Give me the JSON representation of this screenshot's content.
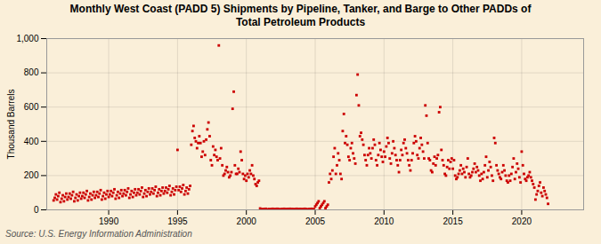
{
  "chart_data": {
    "type": "scatter",
    "title": "Monthly West Coast (PADD 5) Shipments by Pipeline, Tanker, and Barge to Other PADDs of\nTotal Petroleum Products",
    "ylabel": "Thousand Barrels",
    "annotations": [
      "Source: U.S. Energy Information Administration"
    ],
    "color": "#cc0000",
    "marker": "square",
    "grid": true,
    "xlim": [
      1985.5,
      2024.5
    ],
    "xticks": [
      1990,
      1995,
      2000,
      2005,
      2010,
      2015,
      2020
    ],
    "ylim": [
      0,
      1000
    ],
    "yticks": [
      0,
      200,
      400,
      600,
      800,
      {
        "value": 1000,
        "label": "1,000"
      }
    ],
    "x": [
      1986,
      1986.0833333333333,
      1986.1666666666667,
      1986.25,
      1986.3333333333333,
      1986.4166666666667,
      1986.5,
      1986.5833333333333,
      1986.6666666666667,
      1986.75,
      1986.8333333333333,
      1986.9166666666667,
      1987,
      1987.0833333333333,
      1987.1666666666667,
      1987.25,
      1987.3333333333333,
      1987.4166666666667,
      1987.5,
      1987.5833333333333,
      1987.6666666666667,
      1987.75,
      1987.8333333333333,
      1987.9166666666667,
      1988,
      1988.0833333333333,
      1988.1666666666667,
      1988.25,
      1988.3333333333333,
      1988.4166666666667,
      1988.5,
      1988.5833333333333,
      1988.6666666666667,
      1988.75,
      1988.8333333333333,
      1988.9166666666667,
      1989,
      1989.0833333333333,
      1989.1666666666667,
      1989.25,
      1989.3333333333333,
      1989.4166666666667,
      1989.5,
      1989.5833333333333,
      1989.6666666666667,
      1989.75,
      1989.8333333333333,
      1989.9166666666667,
      1990,
      1990.0833333333333,
      1990.1666666666667,
      1990.25,
      1990.3333333333333,
      1990.4166666666667,
      1990.5,
      1990.5833333333333,
      1990.6666666666667,
      1990.75,
      1990.8333333333333,
      1990.9166666666667,
      1991,
      1991.0833333333333,
      1991.1666666666667,
      1991.25,
      1991.3333333333333,
      1991.4166666666667,
      1991.5,
      1991.5833333333333,
      1991.6666666666667,
      1991.75,
      1991.8333333333333,
      1991.9166666666667,
      1992,
      1992.0833333333333,
      1992.1666666666667,
      1992.25,
      1992.3333333333333,
      1992.4166666666667,
      1992.5,
      1992.5833333333333,
      1992.6666666666667,
      1992.75,
      1992.8333333333333,
      1992.9166666666667,
      1993,
      1993.0833333333333,
      1993.1666666666667,
      1993.25,
      1993.3333333333333,
      1993.4166666666667,
      1993.5,
      1993.5833333333333,
      1993.6666666666667,
      1993.75,
      1993.8333333333333,
      1993.9166666666667,
      1994,
      1994.0833333333333,
      1994.1666666666667,
      1994.25,
      1994.3333333333333,
      1994.4166666666667,
      1994.5,
      1994.5833333333333,
      1994.6666666666667,
      1994.75,
      1994.8333333333333,
      1994.9166666666667,
      1995,
      1995.0833333333333,
      1995.1666666666667,
      1995.25,
      1995.3333333333333,
      1995.4166666666667,
      1995.5,
      1995.5833333333333,
      1995.6666666666667,
      1995.75,
      1995.8333333333333,
      1995.9166666666667,
      1996,
      1996.0833333333333,
      1996.1666666666667,
      1996.25,
      1996.3333333333333,
      1996.4166666666667,
      1996.5,
      1996.5833333333333,
      1996.6666666666667,
      1996.75,
      1996.8333333333333,
      1996.9166666666667,
      1997,
      1997.0833333333333,
      1997.1666666666667,
      1997.25,
      1997.3333333333333,
      1997.4166666666667,
      1997.5,
      1997.5833333333333,
      1997.6666666666667,
      1997.75,
      1997.8333333333333,
      1997.9166666666667,
      1998,
      1998.0833333333333,
      1998.1666666666667,
      1998.25,
      1998.3333333333333,
      1998.4166666666667,
      1998.5,
      1998.5833333333333,
      1998.6666666666667,
      1998.75,
      1998.8333333333333,
      1998.9166666666667,
      1999,
      1999.0833333333333,
      1999.1666666666667,
      1999.25,
      1999.3333333333333,
      1999.4166666666667,
      1999.5,
      1999.5833333333333,
      1999.6666666666667,
      1999.75,
      1999.8333333333333,
      1999.9166666666667,
      2000,
      2000.0833333333333,
      2000.1666666666667,
      2000.25,
      2000.3333333333333,
      2000.4166666666667,
      2000.5,
      2000.5833333333333,
      2000.6666666666667,
      2000.75,
      2000.8333333333333,
      2000.9166666666667,
      2001,
      2001.0833333333333,
      2001.1666666666667,
      2001.25,
      2001.3333333333333,
      2001.4166666666667,
      2001.5,
      2001.5833333333333,
      2001.6666666666667,
      2001.75,
      2001.8333333333333,
      2001.9166666666667,
      2002,
      2002.0833333333333,
      2002.1666666666667,
      2002.25,
      2002.3333333333333,
      2002.4166666666667,
      2002.5,
      2002.5833333333333,
      2002.6666666666667,
      2002.75,
      2002.8333333333333,
      2002.9166666666667,
      2003,
      2003.0833333333333,
      2003.1666666666667,
      2003.25,
      2003.3333333333333,
      2003.4166666666667,
      2003.5,
      2003.5833333333333,
      2003.6666666666667,
      2003.75,
      2003.8333333333333,
      2003.9166666666667,
      2004,
      2004.0833333333333,
      2004.1666666666667,
      2004.25,
      2004.3333333333333,
      2004.4166666666667,
      2004.5,
      2004.5833333333333,
      2004.6666666666667,
      2004.75,
      2004.8333333333333,
      2004.9166666666667,
      2005,
      2005.0833333333333,
      2005.1666666666667,
      2005.25,
      2005.3333333333333,
      2005.4166666666667,
      2005.5,
      2005.5833333333333,
      2005.6666666666667,
      2005.75,
      2005.8333333333333,
      2005.9166666666667,
      2006,
      2006.0833333333333,
      2006.1666666666667,
      2006.25,
      2006.3333333333333,
      2006.4166666666667,
      2006.5,
      2006.5833333333333,
      2006.6666666666667,
      2006.75,
      2006.8333333333333,
      2006.9166666666667,
      2007,
      2007.0833333333333,
      2007.1666666666667,
      2007.25,
      2007.3333333333333,
      2007.4166666666667,
      2007.5,
      2007.5833333333333,
      2007.6666666666667,
      2007.75,
      2007.8333333333333,
      2007.9166666666667,
      2008,
      2008.0833333333333,
      2008.1666666666667,
      2008.25,
      2008.3333333333333,
      2008.4166666666667,
      2008.5,
      2008.5833333333333,
      2008.6666666666667,
      2008.75,
      2008.8333333333333,
      2008.9166666666667,
      2009,
      2009.0833333333333,
      2009.1666666666667,
      2009.25,
      2009.3333333333333,
      2009.4166666666667,
      2009.5,
      2009.5833333333333,
      2009.6666666666667,
      2009.75,
      2009.8333333333333,
      2009.9166666666667,
      2010,
      2010.0833333333333,
      2010.1666666666667,
      2010.25,
      2010.3333333333333,
      2010.4166666666667,
      2010.5,
      2010.5833333333333,
      2010.6666666666667,
      2010.75,
      2010.8333333333333,
      2010.9166666666667,
      2011,
      2011.0833333333333,
      2011.1666666666667,
      2011.25,
      2011.3333333333333,
      2011.4166666666667,
      2011.5,
      2011.5833333333333,
      2011.6666666666667,
      2011.75,
      2011.8333333333333,
      2011.9166666666667,
      2012,
      2012.0833333333333,
      2012.1666666666667,
      2012.25,
      2012.3333333333333,
      2012.4166666666667,
      2012.5,
      2012.5833333333333,
      2012.6666666666667,
      2012.75,
      2012.8333333333333,
      2012.9166666666667,
      2013,
      2013.0833333333333,
      2013.1666666666667,
      2013.25,
      2013.3333333333333,
      2013.4166666666667,
      2013.5,
      2013.5833333333333,
      2013.6666666666667,
      2013.75,
      2013.8333333333333,
      2013.9166666666667,
      2014,
      2014.0833333333333,
      2014.1666666666667,
      2014.25,
      2014.3333333333333,
      2014.4166666666667,
      2014.5,
      2014.5833333333333,
      2014.6666666666667,
      2014.75,
      2014.8333333333333,
      2014.9166666666667,
      2015,
      2015.0833333333333,
      2015.1666666666667,
      2015.25,
      2015.3333333333333,
      2015.4166666666667,
      2015.5,
      2015.5833333333333,
      2015.6666666666667,
      2015.75,
      2015.8333333333333,
      2015.9166666666667,
      2016,
      2016.0833333333333,
      2016.1666666666667,
      2016.25,
      2016.3333333333333,
      2016.4166666666667,
      2016.5,
      2016.5833333333333,
      2016.6666666666667,
      2016.75,
      2016.8333333333333,
      2016.9166666666667,
      2017,
      2017.0833333333333,
      2017.1666666666667,
      2017.25,
      2017.3333333333333,
      2017.4166666666667,
      2017.5,
      2017.5833333333333,
      2017.6666666666667,
      2017.75,
      2017.8333333333333,
      2017.9166666666667,
      2018,
      2018.0833333333333,
      2018.1666666666667,
      2018.25,
      2018.3333333333333,
      2018.4166666666667,
      2018.5,
      2018.5833333333333,
      2018.6666666666667,
      2018.75,
      2018.8333333333333,
      2018.9166666666667,
      2019,
      2019.0833333333333,
      2019.1666666666667,
      2019.25,
      2019.3333333333333,
      2019.4166666666667,
      2019.5,
      2019.5833333333333,
      2019.6666666666667,
      2019.75,
      2019.8333333333333,
      2019.9166666666667,
      2020,
      2020.0833333333333,
      2020.1666666666667,
      2020.25,
      2020.3333333333333,
      2020.4166666666667,
      2020.5,
      2020.5833333333333,
      2020.6666666666667,
      2020.75,
      2020.8333333333333,
      2020.9166666666667,
      2021,
      2021.0833333333333,
      2021.1666666666667,
      2021.25,
      2021.3333333333333,
      2021.4166666666667,
      2021.5,
      2021.5833333333333,
      2021.6666666666667,
      2021.75,
      2021.8333333333333,
      2021.9166666666667
    ],
    "values": [
      55,
      70,
      90,
      60,
      80,
      100,
      45,
      65,
      85,
      50,
      75,
      95,
      60,
      75,
      95,
      65,
      85,
      105,
      50,
      70,
      90,
      55,
      80,
      100,
      65,
      80,
      100,
      70,
      90,
      110,
      55,
      75,
      95,
      60,
      85,
      105,
      70,
      85,
      105,
      75,
      95,
      115,
      60,
      80,
      100,
      65,
      90,
      110,
      75,
      90,
      110,
      80,
      100,
      120,
      65,
      85,
      105,
      70,
      95,
      115,
      80,
      95,
      115,
      85,
      105,
      125,
      70,
      90,
      110,
      75,
      100,
      120,
      85,
      100,
      120,
      90,
      110,
      130,
      75,
      95,
      115,
      80,
      105,
      125,
      90,
      105,
      125,
      95,
      115,
      135,
      80,
      100,
      120,
      85,
      110,
      130,
      95,
      110,
      130,
      100,
      120,
      140,
      85,
      105,
      125,
      90,
      115,
      135,
      350,
      115,
      135,
      105,
      125,
      145,
      90,
      110,
      130,
      95,
      120,
      140,
      380,
      460,
      490,
      420,
      400,
      360,
      390,
      430,
      390,
      310,
      340,
      400,
      320,
      410,
      470,
      510,
      430,
      290,
      260,
      370,
      320,
      350,
      310,
      290,
      960,
      300,
      360,
      260,
      200,
      210,
      230,
      250,
      220,
      190,
      200,
      220,
      590,
      690,
      260,
      210,
      210,
      240,
      220,
      340,
      290,
      210,
      180,
      200,
      170,
      210,
      190,
      230,
      210,
      260,
      200,
      180,
      150,
      140,
      160,
      170,
      8,
      2,
      4,
      3,
      5,
      6,
      1,
      3,
      4,
      2,
      5,
      6,
      4,
      3,
      5,
      6,
      4,
      3,
      2,
      5,
      4,
      6,
      3,
      4,
      5,
      4,
      6,
      3,
      5,
      4,
      2,
      5,
      6,
      3,
      4,
      5,
      4,
      3,
      5,
      6,
      4,
      3,
      2,
      5,
      4,
      6,
      3,
      4,
      20,
      30,
      40,
      50,
      10,
      20,
      30,
      40,
      50,
      10,
      20,
      30,
      160,
      210,
      180,
      230,
      310,
      360,
      210,
      260,
      330,
      290,
      210,
      180,
      460,
      560,
      390,
      430,
      380,
      310,
      290,
      360,
      390,
      330,
      300,
      270,
      670,
      790,
      610,
      430,
      450,
      410,
      380,
      320,
      290,
      260,
      320,
      360,
      330,
      300,
      360,
      410,
      380,
      290,
      260,
      320,
      390,
      350,
      310,
      280,
      340,
      310,
      370,
      420,
      390,
      300,
      270,
      330,
      400,
      360,
      320,
      290,
      260,
      220,
      290,
      350,
      320,
      390,
      410,
      360,
      330,
      290,
      260,
      230,
      290,
      330,
      390,
      430,
      400,
      320,
      300,
      360,
      420,
      380,
      340,
      300,
      610,
      550,
      390,
      300,
      290,
      230,
      220,
      270,
      310,
      260,
      300,
      320,
      570,
      600,
      350,
      290,
      260,
      210,
      200,
      250,
      290,
      240,
      280,
      300,
      240,
      290,
      200,
      180,
      190,
      210,
      230,
      260,
      210,
      240,
      220,
      190,
      250,
      300,
      210,
      190,
      200,
      220,
      240,
      270,
      220,
      250,
      230,
      200,
      170,
      210,
      180,
      220,
      260,
      310,
      190,
      230,
      280,
      250,
      200,
      170,
      420,
      390,
      260,
      230,
      210,
      190,
      180,
      220,
      260,
      230,
      200,
      170,
      160,
      200,
      170,
      210,
      250,
      300,
      180,
      220,
      270,
      240,
      190,
      160,
      340,
      260,
      210,
      180,
      170,
      190,
      200,
      220,
      190,
      170,
      150,
      130,
      60,
      90,
      110,
      140,
      160,
      100,
      80,
      130,
      110,
      90,
      70,
      35
    ]
  }
}
